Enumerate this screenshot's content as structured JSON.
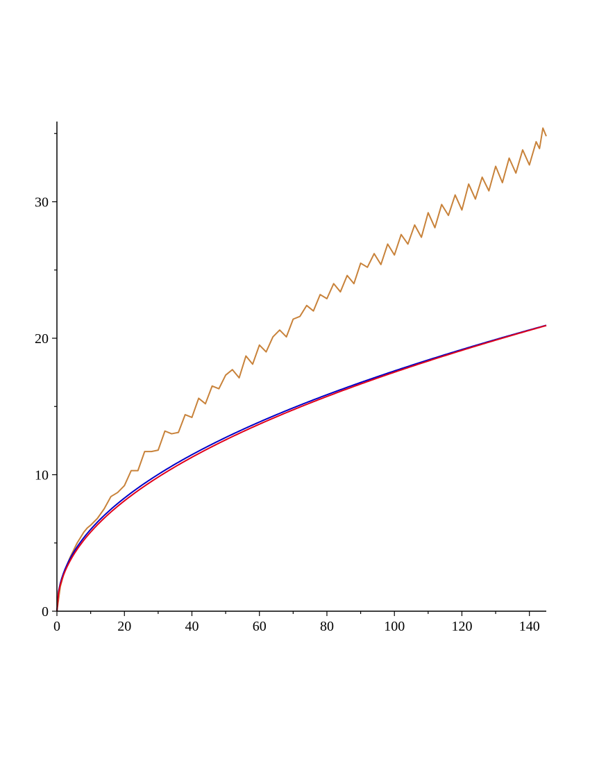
{
  "chart_data": {
    "type": "line",
    "title": "",
    "xlabel": "",
    "ylabel": "",
    "xlim": [
      0,
      145
    ],
    "ylim": [
      0,
      36
    ],
    "grid": false,
    "legend": "none",
    "x_ticks": [
      {
        "value": 0,
        "label": "0"
      },
      {
        "value": 20,
        "label": "20"
      },
      {
        "value": 40,
        "label": "40"
      },
      {
        "value": 60,
        "label": "60"
      },
      {
        "value": 80,
        "label": "80"
      },
      {
        "value": 100,
        "label": "100"
      },
      {
        "value": 120,
        "label": "120"
      },
      {
        "value": 140,
        "label": "140"
      }
    ],
    "x_minor_ticks": [
      10,
      30,
      50,
      70,
      90,
      110,
      130
    ],
    "y_ticks": [
      {
        "value": 0,
        "label": "0"
      },
      {
        "value": 10,
        "label": "10"
      },
      {
        "value": 20,
        "label": "20"
      },
      {
        "value": 30,
        "label": "30"
      }
    ],
    "y_minor_ticks": [
      5,
      15,
      25,
      35
    ],
    "series": [
      {
        "color": "#c8823a",
        "x": [
          0,
          1,
          2,
          3,
          4,
          5,
          6,
          7,
          8,
          9,
          10,
          12,
          14,
          16,
          18,
          20,
          22,
          24,
          26,
          28,
          30,
          32,
          34,
          36,
          38,
          40,
          42,
          44,
          46,
          48,
          50,
          52,
          54,
          56,
          58,
          60,
          62,
          64,
          66,
          68,
          70,
          72,
          74,
          76,
          78,
          80,
          82,
          84,
          86,
          88,
          90,
          92,
          94,
          96,
          98,
          100,
          102,
          104,
          106,
          108,
          110,
          112,
          114,
          116,
          118,
          120,
          122,
          124,
          126,
          128,
          130,
          132,
          134,
          136,
          138,
          140,
          142,
          143,
          144,
          145
        ],
        "y": [
          0,
          1.8,
          2.7,
          3.4,
          4.0,
          4.5,
          5.0,
          5.4,
          5.8,
          6.1,
          6.3,
          6.8,
          7.5,
          8.4,
          8.7,
          9.2,
          10.3,
          10.3,
          11.7,
          11.7,
          11.8,
          13.2,
          13.0,
          13.1,
          14.4,
          14.2,
          15.6,
          15.2,
          16.5,
          16.3,
          17.3,
          17.7,
          17.1,
          18.7,
          18.1,
          19.5,
          19.0,
          20.1,
          20.6,
          20.1,
          21.4,
          21.6,
          22.4,
          22.0,
          23.2,
          22.9,
          24.0,
          23.4,
          24.6,
          24.0,
          25.5,
          25.2,
          26.2,
          25.4,
          26.9,
          26.1,
          27.6,
          26.9,
          28.3,
          27.4,
          29.2,
          28.1,
          29.8,
          29.0,
          30.5,
          29.4,
          31.3,
          30.2,
          31.8,
          30.8,
          32.6,
          31.4,
          33.2,
          32.1,
          33.8,
          32.7,
          34.4,
          33.9,
          35.4,
          34.8
        ]
      },
      {
        "color": "#0000c8",
        "function": "2.04*x^(0.468)",
        "x_range": [
          0,
          145
        ]
      },
      {
        "color": "#e0001a",
        "function": "1.92*x^(0.48)",
        "x_range": [
          0,
          145
        ]
      }
    ]
  }
}
